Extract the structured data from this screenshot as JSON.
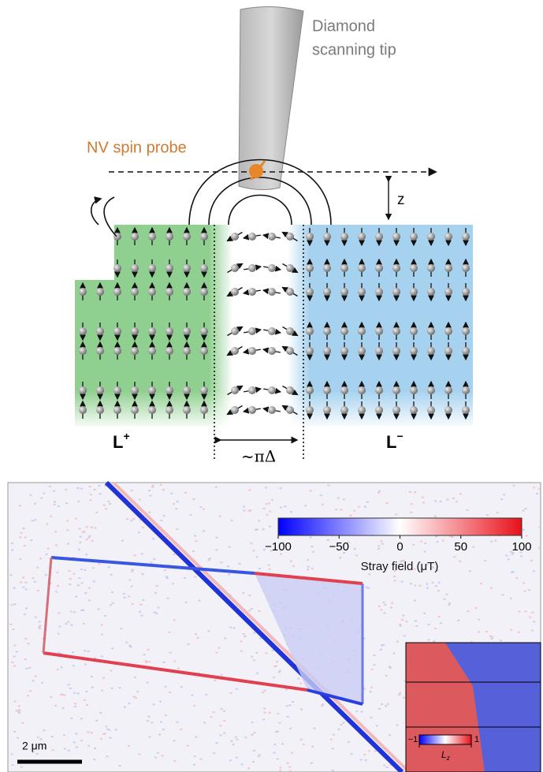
{
  "schematic": {
    "tip_label": [
      "Diamond",
      "scanning tip"
    ],
    "probe_label": "NV spin probe",
    "height_label": "z",
    "left_domain": {
      "main": "L",
      "sup": "+"
    },
    "right_domain": {
      "main": "L",
      "sup": "−"
    },
    "wall_width": "~πΔ"
  },
  "map": {
    "colorbar": {
      "lim": [
        -100,
        100
      ],
      "ticks": [
        {
          "value": -100,
          "label": "−100"
        },
        {
          "value": -50,
          "label": "−50"
        },
        0,
        50,
        100
      ],
      "label": "Stray field (μT)"
    },
    "scale_bar": "2 μm",
    "inset": {
      "colorbar": {
        "lim": [
          -1,
          1
        ],
        "ticks": [
          {
            "value": -1,
            "label": "−1"
          },
          1
        ],
        "label_main": "L",
        "label_sub": "z"
      }
    }
  }
}
